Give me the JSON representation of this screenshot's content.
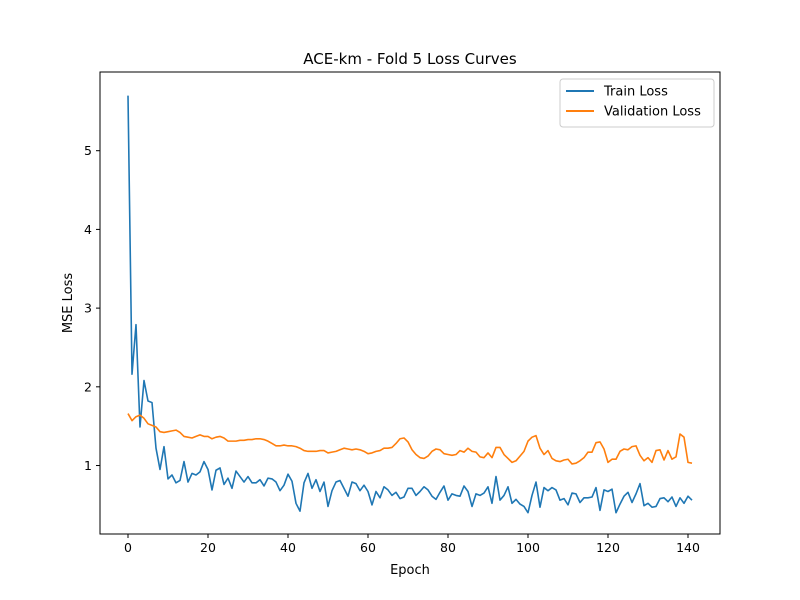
{
  "chart_data": {
    "type": "line",
    "title": "ACE-km - Fold 5 Loss Curves",
    "xlabel": "Epoch",
    "ylabel": "MSE Loss",
    "xlim": [
      -7,
      148
    ],
    "ylim": [
      0.13,
      6.0
    ],
    "xticks": [
      0,
      20,
      40,
      60,
      80,
      100,
      120,
      140
    ],
    "yticks": [
      1,
      2,
      3,
      4,
      5
    ],
    "legend_position": "top-right",
    "grid": false,
    "series": [
      {
        "name": "Train Loss",
        "color": "#1f77b4",
        "values": [
          5.7,
          2.16,
          2.79,
          1.49,
          2.08,
          1.82,
          1.8,
          1.22,
          0.95,
          1.24,
          0.83,
          0.88,
          0.78,
          0.81,
          1.05,
          0.79,
          0.9,
          0.88,
          0.92,
          1.05,
          0.95,
          0.69,
          0.94,
          0.97,
          0.76,
          0.84,
          0.71,
          0.93,
          0.86,
          0.79,
          0.86,
          0.78,
          0.78,
          0.82,
          0.74,
          0.84,
          0.83,
          0.79,
          0.68,
          0.75,
          0.89,
          0.8,
          0.52,
          0.42,
          0.78,
          0.9,
          0.71,
          0.82,
          0.67,
          0.79,
          0.48,
          0.68,
          0.79,
          0.81,
          0.71,
          0.61,
          0.79,
          0.77,
          0.68,
          0.75,
          0.67,
          0.5,
          0.67,
          0.59,
          0.73,
          0.69,
          0.62,
          0.66,
          0.58,
          0.6,
          0.71,
          0.71,
          0.62,
          0.67,
          0.73,
          0.69,
          0.61,
          0.57,
          0.66,
          0.74,
          0.56,
          0.64,
          0.62,
          0.61,
          0.74,
          0.67,
          0.48,
          0.64,
          0.62,
          0.65,
          0.73,
          0.52,
          0.86,
          0.56,
          0.62,
          0.73,
          0.52,
          0.57,
          0.51,
          0.48,
          0.4,
          0.62,
          0.79,
          0.47,
          0.72,
          0.68,
          0.72,
          0.69,
          0.56,
          0.58,
          0.5,
          0.65,
          0.64,
          0.53,
          0.59,
          0.59,
          0.6,
          0.72,
          0.43,
          0.69,
          0.67,
          0.7,
          0.4,
          0.51,
          0.61,
          0.66,
          0.53,
          0.64,
          0.77,
          0.49,
          0.52,
          0.47,
          0.48,
          0.58,
          0.59,
          0.54,
          0.6,
          0.48,
          0.59,
          0.52,
          0.61,
          0.56
        ]
      },
      {
        "name": "Validation Loss",
        "color": "#ff7f0e",
        "values": [
          1.66,
          1.57,
          1.62,
          1.64,
          1.6,
          1.53,
          1.51,
          1.49,
          1.43,
          1.42,
          1.43,
          1.44,
          1.45,
          1.42,
          1.37,
          1.36,
          1.35,
          1.37,
          1.39,
          1.37,
          1.37,
          1.34,
          1.36,
          1.37,
          1.35,
          1.31,
          1.31,
          1.31,
          1.32,
          1.32,
          1.33,
          1.33,
          1.34,
          1.34,
          1.33,
          1.31,
          1.28,
          1.25,
          1.25,
          1.26,
          1.25,
          1.25,
          1.24,
          1.22,
          1.19,
          1.18,
          1.18,
          1.18,
          1.19,
          1.19,
          1.16,
          1.17,
          1.18,
          1.2,
          1.22,
          1.21,
          1.2,
          1.21,
          1.2,
          1.18,
          1.15,
          1.16,
          1.18,
          1.19,
          1.22,
          1.22,
          1.23,
          1.28,
          1.34,
          1.35,
          1.3,
          1.2,
          1.14,
          1.1,
          1.09,
          1.12,
          1.18,
          1.21,
          1.2,
          1.15,
          1.14,
          1.13,
          1.14,
          1.19,
          1.17,
          1.22,
          1.18,
          1.17,
          1.11,
          1.1,
          1.16,
          1.1,
          1.23,
          1.23,
          1.14,
          1.09,
          1.04,
          1.06,
          1.12,
          1.18,
          1.31,
          1.36,
          1.38,
          1.22,
          1.14,
          1.19,
          1.09,
          1.06,
          1.05,
          1.07,
          1.08,
          1.02,
          1.03,
          1.06,
          1.1,
          1.17,
          1.17,
          1.29,
          1.3,
          1.21,
          1.04,
          1.08,
          1.08,
          1.18,
          1.21,
          1.2,
          1.24,
          1.25,
          1.13,
          1.06,
          1.1,
          1.04,
          1.19,
          1.2,
          1.07,
          1.19,
          1.08,
          1.11,
          1.4,
          1.36,
          1.04,
          1.03
        ]
      }
    ]
  }
}
